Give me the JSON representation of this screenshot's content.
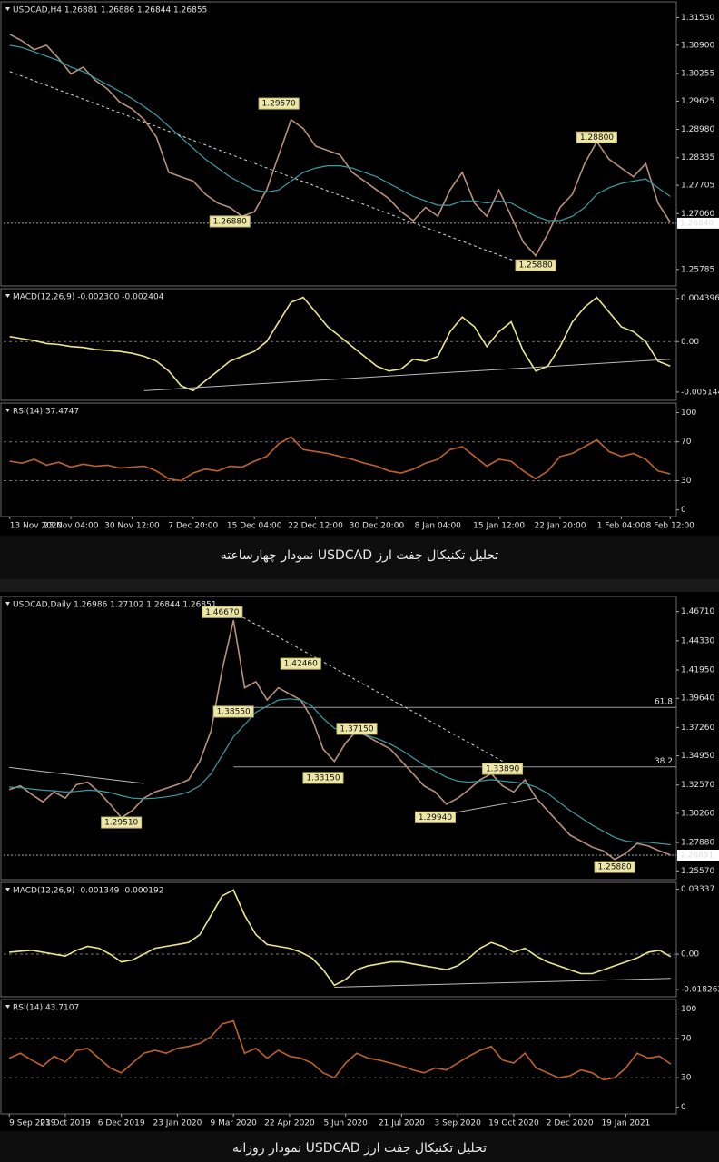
{
  "captions": [
    "تحلیل تکنیکال جفت ارز USDCAD نمودار چهارساعته",
    "تحلیل تکنیکال جفت ارز USDCAD نمودار روزانه"
  ],
  "chart_data": [
    {
      "type": "line",
      "header": "USDCAD,H4 1.26881 1.26886 1.26844 1.26855",
      "series": [
        {
          "color": "#b8907c",
          "values": [
            1.3115,
            1.31,
            1.308,
            1.309,
            1.306,
            1.3025,
            1.304,
            1.301,
            1.299,
            1.296,
            1.2945,
            1.292,
            1.288,
            1.28,
            1.279,
            1.278,
            1.275,
            1.273,
            1.272,
            1.27,
            1.271,
            1.276,
            1.284,
            1.292,
            1.29,
            1.286,
            1.285,
            1.284,
            1.28,
            1.278,
            1.276,
            1.274,
            1.271,
            1.269,
            1.272,
            1.27,
            1.276,
            1.28,
            1.273,
            1.27,
            1.276,
            1.27,
            1.264,
            1.261,
            1.266,
            1.272,
            1.275,
            1.282,
            1.287,
            1.283,
            1.281,
            1.279,
            1.282,
            1.273,
            1.2686
          ]
        },
        {
          "color": "#3a9ea6",
          "values": [
            1.309,
            1.3085,
            1.3075,
            1.3065,
            1.3055,
            1.304,
            1.303,
            1.3015,
            1.3,
            1.2985,
            1.2968,
            1.295,
            1.293,
            1.2905,
            1.288,
            1.2855,
            1.283,
            1.281,
            1.279,
            1.2775,
            1.276,
            1.2755,
            1.276,
            1.278,
            1.28,
            1.281,
            1.2815,
            1.2815,
            1.281,
            1.28,
            1.279,
            1.2775,
            1.276,
            1.2745,
            1.2735,
            1.2725,
            1.2725,
            1.2735,
            1.2735,
            1.273,
            1.2735,
            1.273,
            1.2715,
            1.27,
            1.269,
            1.269,
            1.27,
            1.272,
            1.275,
            1.2765,
            1.2775,
            1.278,
            1.2785,
            1.2765,
            1.2745
          ]
        }
      ],
      "ylim": [
        1.2545,
        1.3185
      ],
      "yticks": [
        {
          "value": 1.3153,
          "label": "1.31530"
        },
        {
          "value": 1.309,
          "label": "1.30900"
        },
        {
          "value": 1.30255,
          "label": "1.30255"
        },
        {
          "value": 1.29625,
          "label": "1.29625"
        },
        {
          "value": 1.2898,
          "label": "1.28980"
        },
        {
          "value": 1.28335,
          "label": "1.28335"
        },
        {
          "value": 1.27705,
          "label": "1.27705"
        },
        {
          "value": 1.2706,
          "label": "1.27060"
        },
        {
          "value": 1.25785,
          "label": "1.25785"
        }
      ],
      "grid": false,
      "price_line": {
        "value": 1.2684,
        "label": "1.26840"
      },
      "annotations": [
        {
          "value": 1.2957,
          "label": "1.29570",
          "index": 22
        },
        {
          "value": 1.2688,
          "label": "1.26880",
          "index": 18
        },
        {
          "value": 1.2588,
          "label": "1.25880",
          "index": 43
        },
        {
          "value": 1.288,
          "label": "1.28800",
          "index": 48
        }
      ],
      "trendlines": [
        {
          "x": [
            0,
            43
          ],
          "y": [
            1.303,
            1.258
          ],
          "style": "dashed"
        }
      ]
    },
    {
      "type": "line",
      "header": "MACD(12,26,9) -0.002300 -0.002404",
      "series": [
        {
          "color": "#ece68a",
          "values": [
            0.0005,
            0.0003,
            0.0001,
            -0.0002,
            -0.0003,
            -0.0005,
            -0.0006,
            -0.0008,
            -0.0009,
            -0.001,
            -0.0012,
            -0.0015,
            -0.002,
            -0.003,
            -0.0045,
            -0.005,
            -0.004,
            -0.003,
            -0.002,
            -0.0015,
            -0.001,
            0,
            0.002,
            0.004,
            0.0045,
            0.003,
            0.0015,
            0.0005,
            -0.0005,
            -0.0015,
            -0.0025,
            -0.003,
            -0.0028,
            -0.0018,
            -0.002,
            -0.0015,
            0.001,
            0.0025,
            0.0015,
            -0.0005,
            0.001,
            0.002,
            -0.001,
            -0.003,
            -0.0025,
            -0.0005,
            0.002,
            0.0035,
            0.0045,
            0.003,
            0.0015,
            0.001,
            0,
            -0.002,
            -0.0025
          ]
        }
      ],
      "ylim": [
        -0.0058,
        0.0052
      ],
      "yticks": [
        0.004396,
        {
          "value": 0,
          "label": "0.00"
        },
        -0.005144
      ],
      "grid": true,
      "trendlines": [
        {
          "x": [
            11,
            54
          ],
          "y": [
            -0.005,
            -0.0018
          ],
          "style": "solid"
        }
      ]
    },
    {
      "type": "line",
      "header": "RSI(14) 37.4747",
      "categories": [
        "13 Nov 2020",
        null,
        null,
        null,
        null,
        "23 Nov 04:00",
        null,
        null,
        null,
        null,
        "30 Nov 12:00",
        null,
        null,
        null,
        null,
        "7 Dec 20:00",
        null,
        null,
        null,
        null,
        "15 Dec 04:00",
        null,
        null,
        null,
        null,
        "22 Dec 12:00",
        null,
        null,
        null,
        null,
        "30 Dec 20:00",
        null,
        null,
        null,
        null,
        "8 Jan 04:00",
        null,
        null,
        null,
        null,
        "15 Jan 12:00",
        null,
        null,
        null,
        null,
        "22 Jan 20:00",
        null,
        null,
        null,
        null,
        "1 Feb 04:00",
        null,
        null,
        null,
        "8 Feb 12:00"
      ],
      "series": [
        {
          "color": "#c0622a",
          "values": [
            50,
            48,
            52,
            46,
            49,
            44,
            47,
            45,
            46,
            43,
            44,
            45,
            40,
            32,
            30,
            38,
            42,
            40,
            45,
            44,
            50,
            55,
            68,
            75,
            62,
            60,
            58,
            55,
            52,
            48,
            45,
            40,
            38,
            42,
            48,
            52,
            62,
            65,
            55,
            45,
            52,
            50,
            40,
            32,
            40,
            55,
            58,
            65,
            72,
            60,
            55,
            58,
            52,
            40,
            37
          ]
        }
      ],
      "ylim": [
        -5,
        108
      ],
      "yticks": [
        100,
        70,
        30,
        0
      ],
      "grid": true
    },
    {
      "type": "line",
      "header": "USDCAD,Daily 1.26986 1.27102 1.26844 1.26851",
      "series": [
        {
          "color": "#b8907c",
          "values": [
            1.322,
            1.325,
            1.318,
            1.312,
            1.32,
            1.315,
            1.326,
            1.328,
            1.32,
            1.31,
            1.299,
            1.305,
            1.315,
            1.32,
            1.323,
            1.326,
            1.33,
            1.345,
            1.37,
            1.42,
            1.46,
            1.405,
            1.41,
            1.395,
            1.405,
            1.4,
            1.395,
            1.38,
            1.355,
            1.345,
            1.36,
            1.37,
            1.365,
            1.36,
            1.355,
            1.345,
            1.335,
            1.325,
            1.32,
            1.31,
            1.315,
            1.322,
            1.33,
            1.335,
            1.325,
            1.32,
            1.33,
            1.315,
            1.305,
            1.295,
            1.285,
            1.28,
            1.275,
            1.272,
            1.265,
            1.27,
            1.278,
            1.276,
            1.272,
            1.2685
          ]
        },
        {
          "color": "#3a9ea6",
          "values": [
            1.324,
            1.3235,
            1.3225,
            1.3215,
            1.321,
            1.32,
            1.3205,
            1.3215,
            1.321,
            1.3195,
            1.317,
            1.315,
            1.3145,
            1.315,
            1.316,
            1.3175,
            1.32,
            1.325,
            1.335,
            1.35,
            1.365,
            1.375,
            1.385,
            1.39,
            1.395,
            1.396,
            1.395,
            1.39,
            1.38,
            1.372,
            1.369,
            1.368,
            1.366,
            1.363,
            1.359,
            1.354,
            1.348,
            1.342,
            1.337,
            1.332,
            1.329,
            1.328,
            1.329,
            1.33,
            1.329,
            1.328,
            1.327,
            1.324,
            1.319,
            1.312,
            1.305,
            1.299,
            1.293,
            1.288,
            1.283,
            1.28,
            1.279,
            1.279,
            1.278,
            1.277
          ]
        }
      ],
      "ylim": [
        1.25,
        1.478
      ],
      "yticks": [
        {
          "value": 1.4671,
          "label": "1.46710"
        },
        {
          "value": 1.4433,
          "label": "1.44330"
        },
        {
          "value": 1.4195,
          "label": "1.41950"
        },
        {
          "value": 1.3964,
          "label": "1.39640"
        },
        {
          "value": 1.3726,
          "label": "1.37260"
        },
        {
          "value": 1.3495,
          "label": "1.34950"
        },
        {
          "value": 1.3257,
          "label": "1.32570"
        },
        {
          "value": 1.3026,
          "label": "1.30260"
        },
        {
          "value": 1.2788,
          "label": "1.27880"
        },
        {
          "value": 1.2557,
          "label": "1.25570"
        }
      ],
      "grid": false,
      "price_line": {
        "value": 1.26851,
        "label": "1.26851"
      },
      "levels": [
        {
          "level": 61.8,
          "price": 1.389,
          "from": 20
        },
        {
          "level": 38.2,
          "price": 1.3405,
          "from": 20
        }
      ],
      "annotations": [
        {
          "value": 1.4667,
          "label": "1.46670",
          "index": 19
        },
        {
          "value": 1.3855,
          "label": "1.38550",
          "index": 20
        },
        {
          "value": 1.4246,
          "label": "1.42460",
          "index": 26
        },
        {
          "value": 1.3715,
          "label": "1.37150",
          "index": 31
        },
        {
          "value": 1.3315,
          "label": "1.33150",
          "index": 28
        },
        {
          "value": 1.2951,
          "label": "1.29510",
          "index": 10
        },
        {
          "value": 1.2994,
          "label": "1.29940",
          "index": 38
        },
        {
          "value": 1.3389,
          "label": "1.33890",
          "index": 44
        },
        {
          "value": 1.2588,
          "label": "1.25880",
          "index": 54
        }
      ],
      "trendlines": [
        {
          "x": [
            0,
            12
          ],
          "y": [
            1.34,
            1.327
          ],
          "style": "solid"
        },
        {
          "x": [
            20,
            45
          ],
          "y": [
            1.4667,
            1.34
          ],
          "style": "dashed"
        },
        {
          "x": [
            39,
            47
          ],
          "y": [
            1.302,
            1.315
          ],
          "style": "solid"
        }
      ]
    },
    {
      "type": "line",
      "header": "MACD(12,26,9) -0.001349 -0.000192",
      "series": [
        {
          "color": "#ece68a",
          "values": [
            0.001,
            0.0015,
            0.002,
            0.001,
            0,
            -0.001,
            0.002,
            0.004,
            0.003,
            0,
            -0.004,
            -0.003,
            0,
            0.003,
            0.004,
            0.005,
            0.006,
            0.01,
            0.02,
            0.03,
            0.033,
            0.02,
            0.01,
            0.005,
            0.004,
            0.003,
            0.001,
            -0.002,
            -0.008,
            -0.016,
            -0.013,
            -0.008,
            -0.006,
            -0.005,
            -0.004,
            -0.004,
            -0.005,
            -0.006,
            -0.007,
            -0.008,
            -0.006,
            -0.002,
            0.003,
            0.006,
            0.004,
            0.001,
            0.003,
            -0.001,
            -0.004,
            -0.006,
            -0.008,
            -0.01,
            -0.01,
            -0.008,
            -0.006,
            -0.004,
            -0.002,
            0.001,
            0.002,
            -0.0013
          ]
        }
      ],
      "ylim": [
        -0.021,
        0.036
      ],
      "yticks": [
        0.03337,
        {
          "value": 0,
          "label": "0.00"
        },
        -0.018262
      ],
      "grid": true,
      "trendlines": [
        {
          "x": [
            29,
            59
          ],
          "y": [
            -0.017,
            -0.0125
          ],
          "style": "solid"
        }
      ]
    },
    {
      "type": "line",
      "header": "RSI(14) 43.7107",
      "categories": [
        "9 Sep 2019",
        null,
        null,
        null,
        null,
        "23 Oct 2019",
        null,
        null,
        null,
        null,
        "6 Dec 2019",
        null,
        null,
        null,
        null,
        "23 Jan 2020",
        null,
        null,
        null,
        null,
        "9 Mar 2020",
        null,
        null,
        null,
        null,
        "22 Apr 2020",
        null,
        null,
        null,
        null,
        "5 Jun 2020",
        null,
        null,
        null,
        null,
        "21 Jul 2020",
        null,
        null,
        null,
        null,
        "3 Sep 2020",
        null,
        null,
        null,
        null,
        "19 Oct 2020",
        null,
        null,
        null,
        null,
        "2 Dec 2020",
        null,
        null,
        null,
        null,
        "19 Jan 2021",
        null,
        null,
        null,
        null
      ],
      "series": [
        {
          "color": "#c0622a",
          "values": [
            50,
            55,
            48,
            42,
            52,
            46,
            58,
            60,
            50,
            40,
            35,
            45,
            55,
            58,
            55,
            60,
            62,
            65,
            72,
            85,
            88,
            55,
            60,
            50,
            58,
            52,
            50,
            45,
            35,
            30,
            45,
            55,
            50,
            48,
            45,
            42,
            38,
            35,
            40,
            38,
            45,
            52,
            58,
            62,
            48,
            45,
            55,
            40,
            35,
            30,
            32,
            38,
            35,
            28,
            30,
            40,
            55,
            50,
            52,
            44
          ]
        }
      ],
      "ylim": [
        -5,
        108
      ],
      "yticks": [
        100,
        70,
        30,
        0
      ],
      "grid": true
    }
  ]
}
